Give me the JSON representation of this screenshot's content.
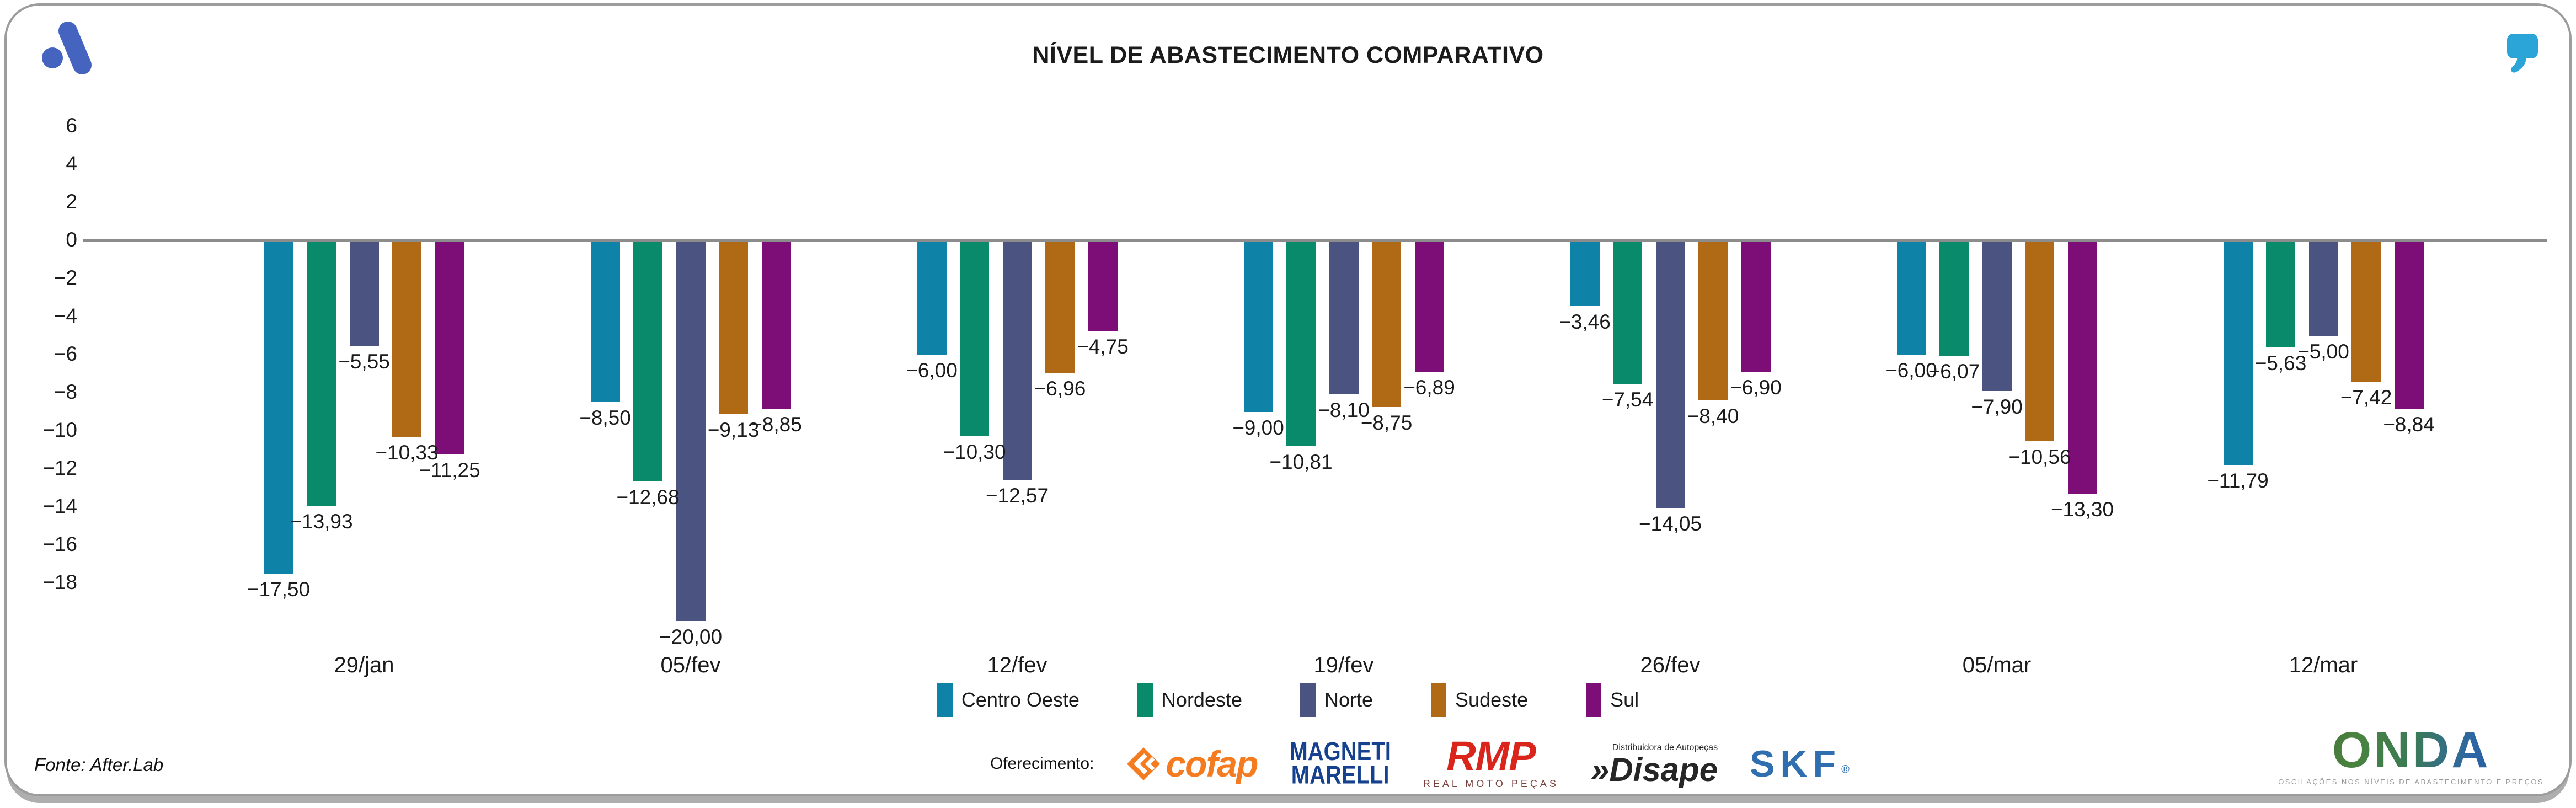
{
  "chart_data": {
    "type": "bar",
    "title": "NÍVEL DE ABASTECIMENTO COMPARATIVO",
    "categories": [
      "29/jan",
      "05/fev",
      "12/fev",
      "19/fev",
      "26/fev",
      "05/mar",
      "12/mar"
    ],
    "series": [
      {
        "name": "Centro Oeste",
        "color": "#0f82a8",
        "values": [
          -17.5,
          -8.5,
          -6.0,
          -9.0,
          -3.46,
          -6.0,
          -11.79
        ]
      },
      {
        "name": "Nordeste",
        "color": "#088a6b",
        "values": [
          -13.93,
          -12.68,
          -10.3,
          -10.81,
          -7.54,
          -6.07,
          -5.63
        ]
      },
      {
        "name": "Norte",
        "color": "#4b5381",
        "values": [
          -5.55,
          -20.0,
          -12.57,
          -8.1,
          -14.05,
          -7.9,
          -5.0
        ]
      },
      {
        "name": "Sudeste",
        "color": "#b06a16",
        "values": [
          -10.33,
          -9.13,
          -6.96,
          -8.75,
          -8.4,
          -10.56,
          -7.42
        ]
      },
      {
        "name": "Sul",
        "color": "#7d0e78",
        "values": [
          -11.25,
          -8.85,
          -4.75,
          -6.89,
          -6.9,
          -13.3,
          -8.84
        ]
      }
    ],
    "yticks": [
      6,
      4,
      2,
      0,
      -2,
      -4,
      -6,
      -8,
      -10,
      -12,
      -14,
      -16,
      -18
    ],
    "ylim": [
      -21,
      7
    ],
    "grid": false,
    "legend_position": "bottom",
    "value_labels": "below bars, comma decimal, 2 places"
  },
  "colors": {
    "zero_line": "#8c8c8c",
    "logo_blue": "#4464bf",
    "quote_blue": "#2ba5d8",
    "cofap_orange": "#f47b20",
    "magneti_navy": "#15418f",
    "rmp_red": "#d9251c",
    "disape_black": "#262626",
    "skf_blue": "#2f6fb0"
  },
  "icons": {
    "afterlab_logo": "afterlab-logo-icon",
    "quote": "quote-icon",
    "cofap_diamond": "cofap-icon"
  },
  "footer": {
    "fonte": "Fonte: After.Lab",
    "oferecimento_label": "Oferecimento:",
    "partners": {
      "cofap": "cofap",
      "magneti_line1": "MAGNETI",
      "magneti_line2": "MARELLI",
      "rmp": "RMP",
      "rmp_sub": "REAL MOTO PEÇAS",
      "disape_prefix": "»",
      "disape": "Disape",
      "disape_sub": "Distribuidora de Autopeças",
      "skf": "SKF",
      "skf_reg": "®"
    },
    "onda": {
      "name": "ONDA",
      "tagline": "OSCILAÇÕES NOS NÍVEIS DE ABASTECIMENTO E PREÇOS"
    }
  }
}
